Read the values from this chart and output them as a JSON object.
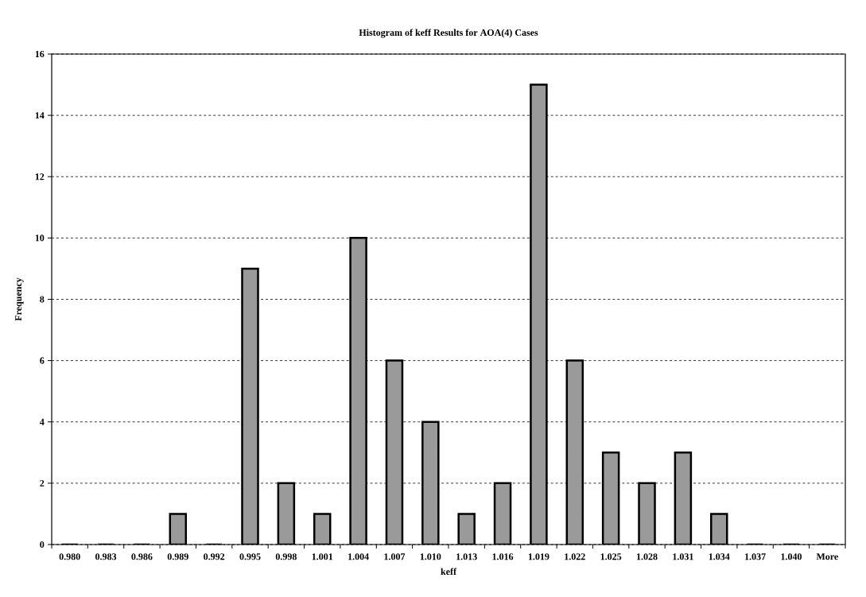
{
  "chart_data": {
    "type": "bar",
    "title": "Histogram of keff Results for AOA(4) Cases",
    "xlabel": "keff",
    "ylabel": "Frequency",
    "categories": [
      "0.980",
      "0.983",
      "0.986",
      "0.989",
      "0.992",
      "0.995",
      "0.998",
      "1.001",
      "1.004",
      "1.007",
      "1.010",
      "1.013",
      "1.016",
      "1.019",
      "1.022",
      "1.025",
      "1.028",
      "1.031",
      "1.034",
      "1.037",
      "1.040",
      "More"
    ],
    "values": [
      0,
      0,
      0,
      1,
      0,
      9,
      2,
      1,
      10,
      6,
      4,
      1,
      2,
      15,
      6,
      3,
      2,
      3,
      1,
      0,
      0,
      0
    ],
    "color": "#9a9a9a",
    "ylim": [
      0,
      16
    ],
    "yticks": [
      0,
      2,
      4,
      6,
      8,
      10,
      12,
      14,
      16
    ],
    "grid": "y"
  }
}
